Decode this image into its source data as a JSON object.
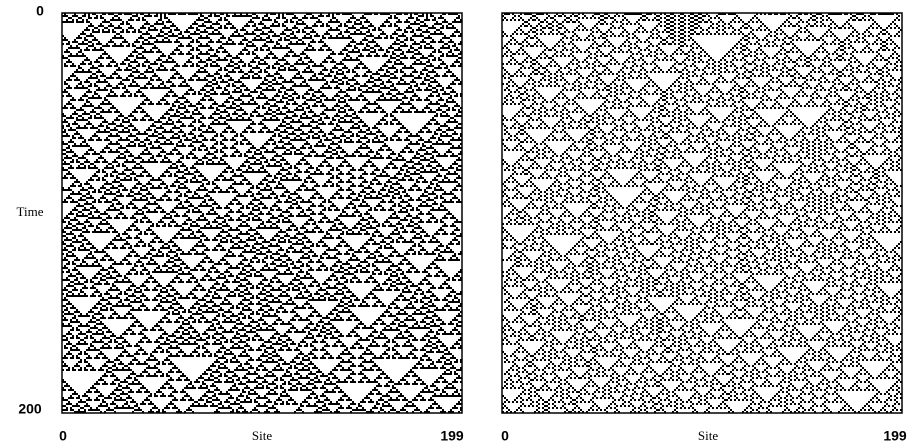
{
  "y_axis": {
    "start": "0",
    "title": "Time",
    "end": "200"
  },
  "panels": [
    {
      "x_axis": {
        "start": "0",
        "title": "Site",
        "end": "199"
      }
    },
    {
      "x_axis": {
        "start": "0",
        "title": "Site",
        "end": "199"
      }
    }
  ]
}
